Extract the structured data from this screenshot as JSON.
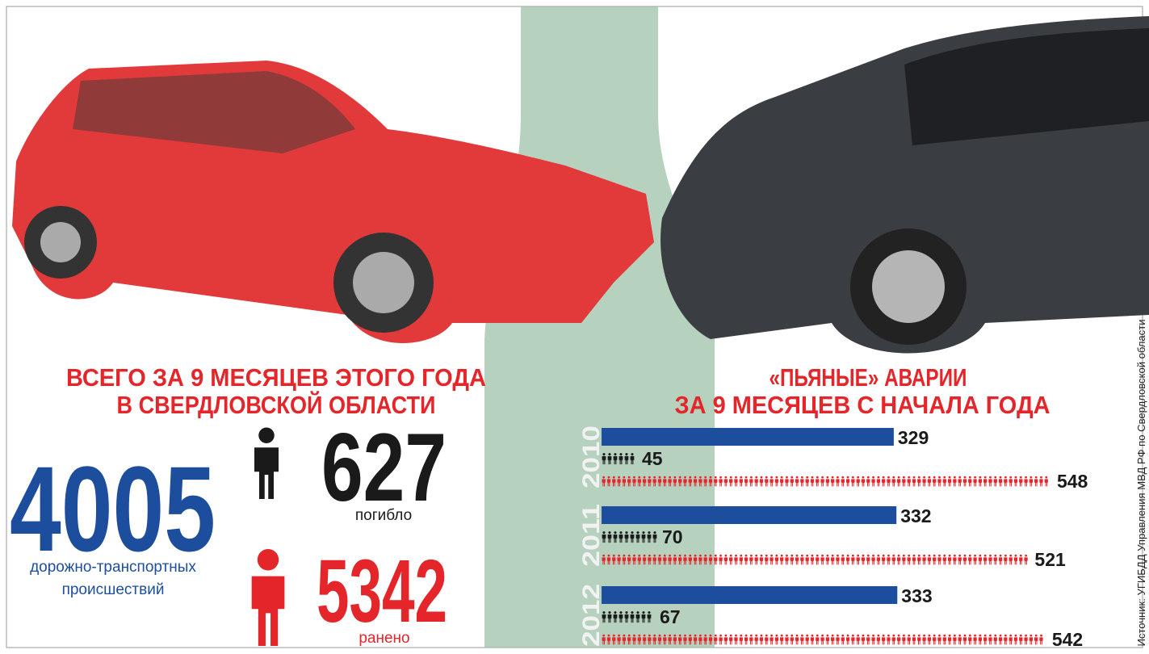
{
  "left": {
    "title_lines": [
      "ВСЕГО ЗА 9 МЕСЯЦЕВ ЭТОГО ГОДА",
      "В СВЕРДЛОВСКОЙ ОБЛАСТИ"
    ],
    "total": "4005",
    "total_caption_lines": [
      "дорожно-транспортных",
      "происшествий"
    ],
    "killed": "627",
    "killed_caption": "погибло",
    "injured": "5342",
    "injured_caption": "ранено"
  },
  "chart_data": {
    "type": "bar",
    "title_lines": [
      "«ПЬЯНЫЕ» АВАРИИ",
      "ЗА 9 МЕСЯЦЕВ С НАЧАЛА ГОДА"
    ],
    "categories": [
      "2010",
      "2011",
      "2012"
    ],
    "series": [
      {
        "color": "#1d4e9e",
        "values": [
          329,
          332,
          333
        ]
      },
      {
        "color": "#1a1a1a",
        "values": [
          45,
          70,
          67
        ]
      },
      {
        "color": "#e4262b",
        "values": [
          548,
          521,
          542
        ]
      }
    ]
  },
  "source": "Источник: УГИБДД Управления МВД РФ по Свердловской области"
}
